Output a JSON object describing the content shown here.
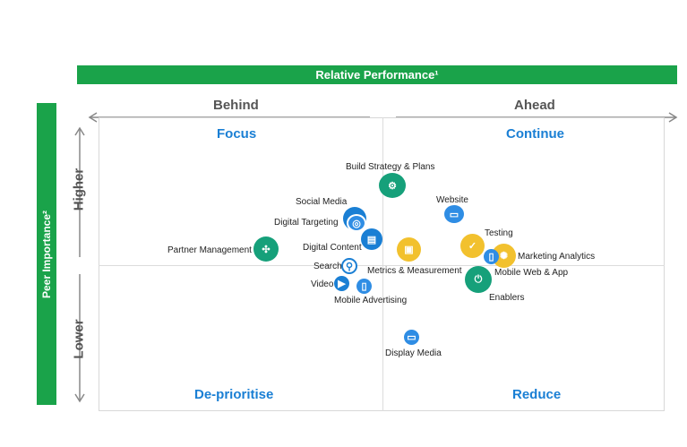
{
  "header": {
    "title": "Relative Performance¹"
  },
  "side": {
    "title": "Peer Importance²"
  },
  "axes": {
    "left": "Behind",
    "right": "Ahead",
    "high": "Higher",
    "low": "Lower"
  },
  "quadrants": {
    "top_left": "Focus",
    "top_right": "Continue",
    "bottom_left": "De-prioritise",
    "bottom_right": "Reduce"
  },
  "colors": {
    "green": "#1aa34a",
    "blue": "#1a7fd4",
    "teal": "#16a07a",
    "yellow": "#f2c12e",
    "sky": "#2f8de4"
  },
  "items": {
    "build": "Build Strategy & Plans",
    "website": "Website",
    "social": "Social Media",
    "targeting": "Digital Targeting",
    "content": "Digital Content",
    "partner": "Partner Management",
    "testing": "Testing",
    "analytics": "Marketing Analytics",
    "mobile": "Mobile Web & App",
    "metrics": "Metrics & Measurement",
    "search": "Search",
    "video": "Video",
    "mobile_adv": "Mobile Advertising",
    "enablers": "Enablers",
    "display": "Display Media"
  }
}
